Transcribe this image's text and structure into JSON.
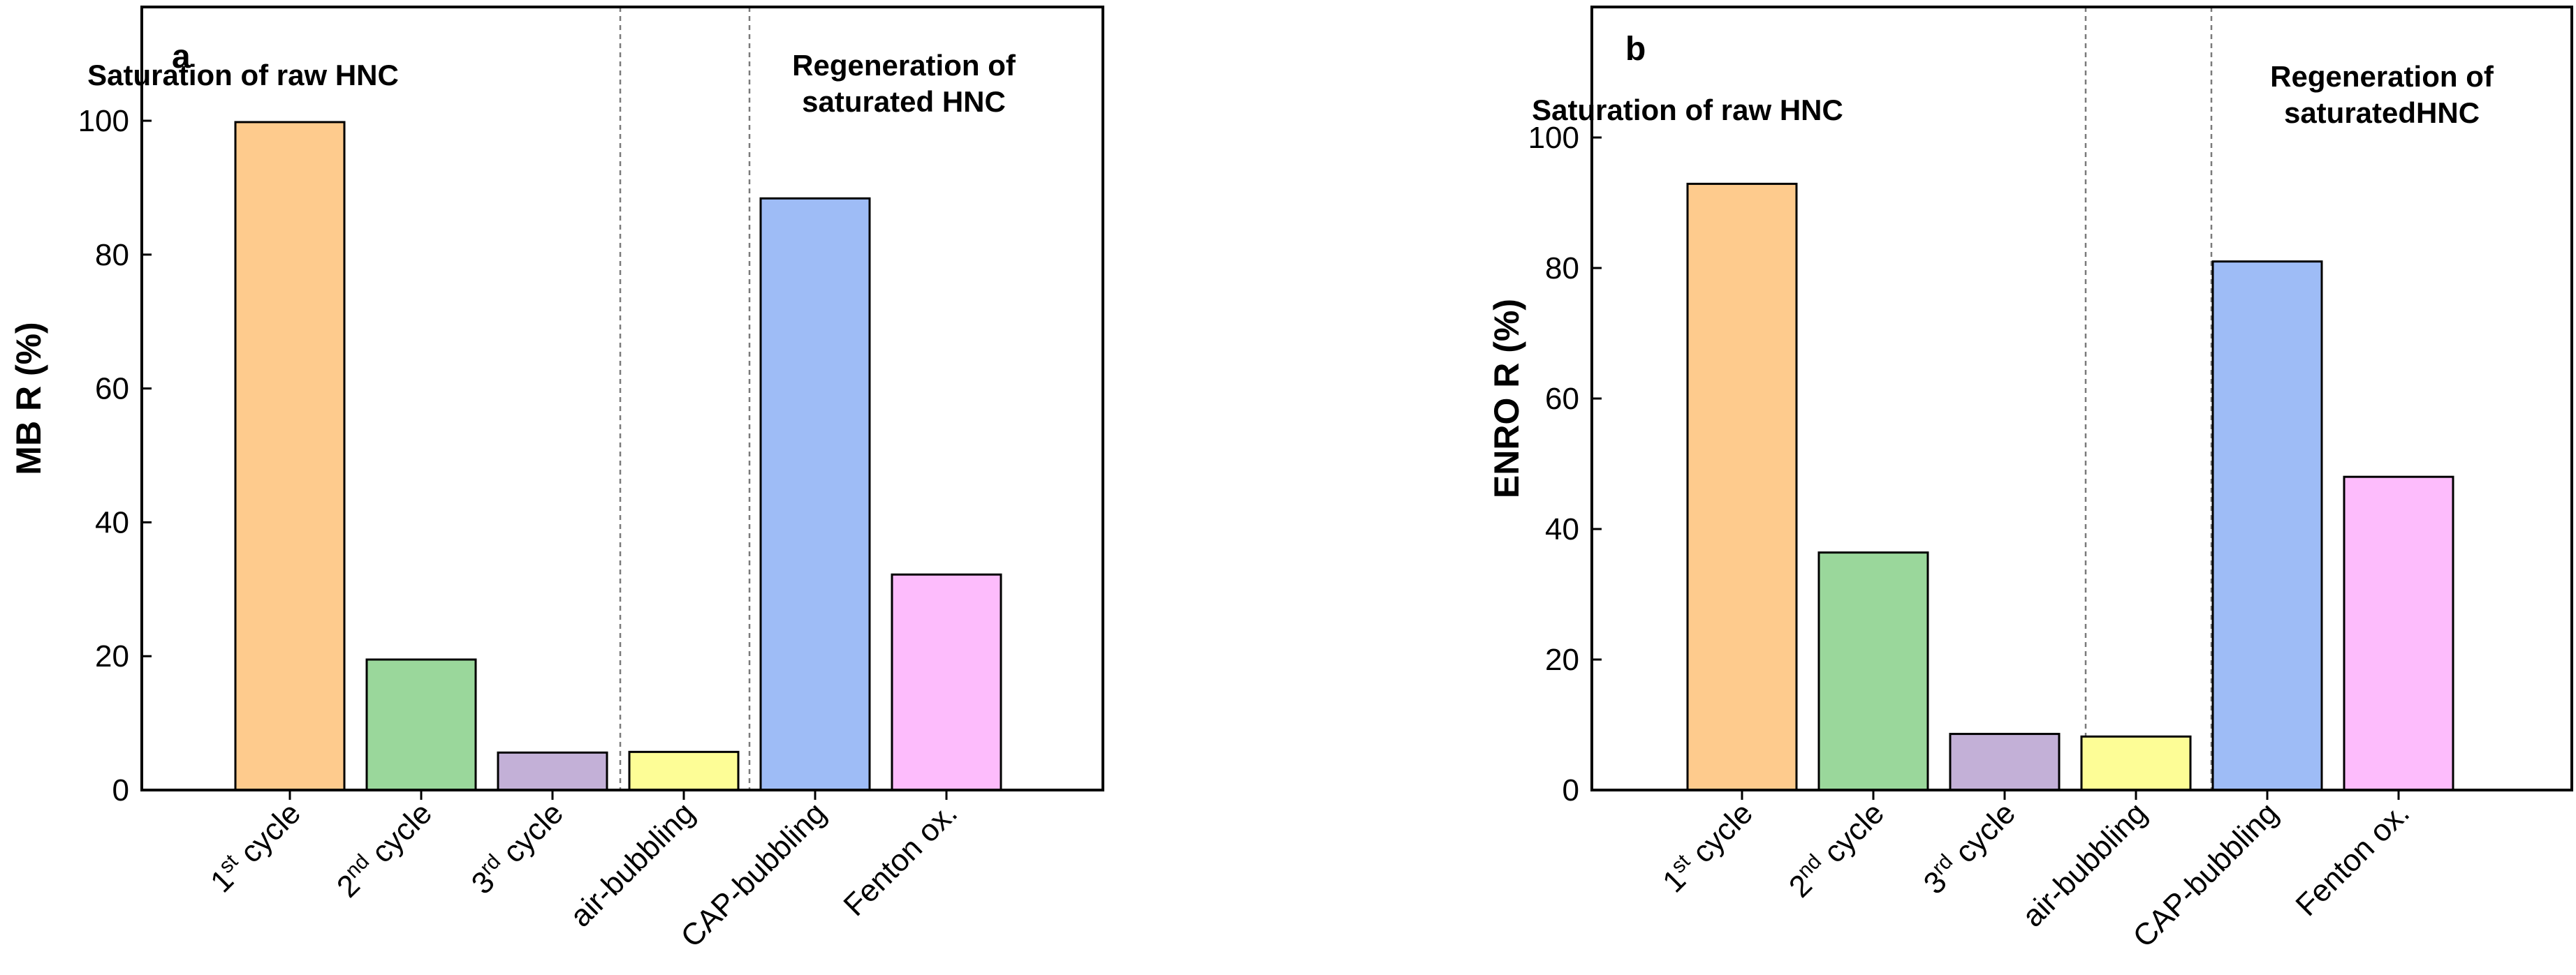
{
  "colors": {
    "c1": "#FECB8D",
    "c2": "#9AD79B",
    "c3": "#C3B0D7",
    "c4": "#FDFD96",
    "c5": "#9EBCF6",
    "c6": "#FDBCFC"
  },
  "chart_data": [
    {
      "type": "bar",
      "panel": "a",
      "ylabel": "MB R (%)",
      "xlabel": "",
      "ylim": [
        0,
        117
      ],
      "yticks": [
        "0",
        "20",
        "40",
        "60",
        "80",
        "100"
      ],
      "categories": [
        {
          "main": "1",
          "sup": "st",
          "rest": " cycle"
        },
        {
          "main": "2",
          "sup": "nd",
          "rest": " cycle"
        },
        {
          "main": "3",
          "sup": "rd",
          "rest": " cycle"
        },
        {
          "main": "air-bubbling",
          "sup": "",
          "rest": ""
        },
        {
          "main": "CAP-bubbling",
          "sup": "",
          "rest": ""
        },
        {
          "main": "Fenton ox.",
          "sup": "",
          "rest": ""
        }
      ],
      "values": [
        99.8,
        19.5,
        5.6,
        5.7,
        88.4,
        32.2
      ],
      "annotations": [
        {
          "lines": [
            "Saturation of raw HNC"
          ]
        },
        {
          "lines": [
            "Regeneration of",
            "saturated HNC"
          ]
        }
      ],
      "grid": false
    },
    {
      "type": "bar",
      "panel": "b",
      "ylabel": "ENRO R (%)",
      "xlabel": "",
      "ylim": [
        0,
        120
      ],
      "yticks": [
        "0",
        "20",
        "40",
        "60",
        "80",
        "100"
      ],
      "categories": [
        {
          "main": "1",
          "sup": "st",
          "rest": " cycle"
        },
        {
          "main": "2",
          "sup": "nd",
          "rest": " cycle"
        },
        {
          "main": "3",
          "sup": "rd",
          "rest": " cycle"
        },
        {
          "main": "air-bubbling",
          "sup": "",
          "rest": ""
        },
        {
          "main": "CAP-bubbling",
          "sup": "",
          "rest": ""
        },
        {
          "main": "Fenton ox.",
          "sup": "",
          "rest": ""
        }
      ],
      "values": [
        92.9,
        36.4,
        8.6,
        8.2,
        81.0,
        48.0
      ],
      "annotations": [
        {
          "lines": [
            "Saturation of raw HNC"
          ]
        },
        {
          "lines": [
            "Regeneration of",
            "saturatedHNC"
          ]
        }
      ],
      "grid": false
    }
  ]
}
